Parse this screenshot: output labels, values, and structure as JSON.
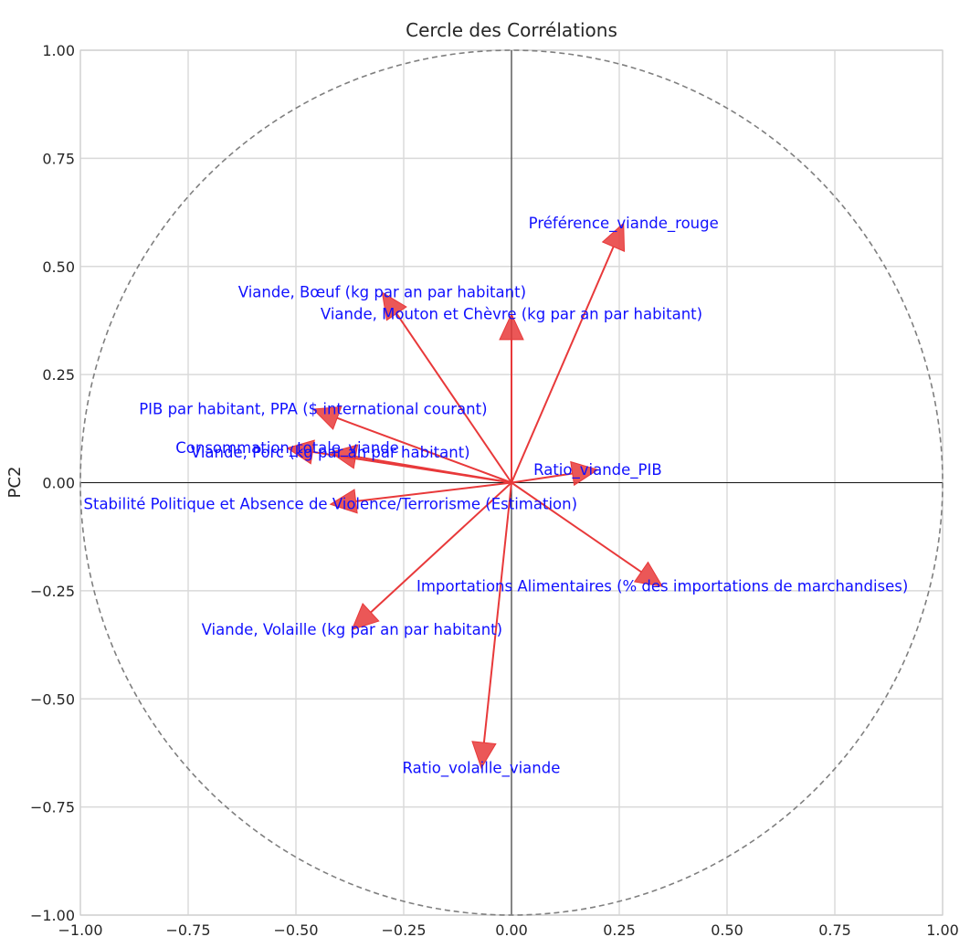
{
  "chart_data": {
    "type": "correlation_circle",
    "title": "Cercle des Corrélations",
    "xlabel": "",
    "ylabel": "PC2",
    "xlim": [
      -1.0,
      1.0
    ],
    "ylim": [
      -1.0,
      1.0
    ],
    "x_ticks": [
      "−1.00",
      "−0.75",
      "−0.50",
      "−0.25",
      "0.00",
      "0.25",
      "0.50",
      "0.75",
      "1.00"
    ],
    "y_ticks": [
      "1.00",
      "0.75",
      "0.50",
      "0.25",
      "0.00",
      "−0.25",
      "−0.50",
      "−0.75",
      "−1.00"
    ],
    "tick_values": [
      -1.0,
      -0.75,
      -0.5,
      -0.25,
      0.0,
      0.25,
      0.5,
      0.75,
      1.0
    ],
    "grid": true,
    "circle_radius": 1.0,
    "arrow_color": "#e8393a",
    "label_color": "#1010ff",
    "vectors": [
      {
        "name": "Préférence_viande_rouge",
        "x": 0.26,
        "y": 0.6
      },
      {
        "name": "Viande, Bœuf (kg par an par habitant)",
        "x": -0.3,
        "y": 0.44
      },
      {
        "name": "Viande, Mouton et Chèvre (kg par an par habitant)",
        "x": 0.0,
        "y": 0.39
      },
      {
        "name": "PIB par habitant, PPA ($ international courant)",
        "x": -0.46,
        "y": 0.17
      },
      {
        "name": "Consommation_totale_viande",
        "x": -0.52,
        "y": 0.08
      },
      {
        "name": "Viande, Porc (kg par an par habitant)",
        "x": -0.42,
        "y": 0.07
      },
      {
        "name": "Ratio_viande_PIB",
        "x": 0.2,
        "y": 0.03
      },
      {
        "name": "Stabilité Politique et Absence de Violence/Terrorisme (Estimation)",
        "x": -0.42,
        "y": -0.05
      },
      {
        "name": "Importations Alimentaires (% des importations de marchandises)",
        "x": 0.35,
        "y": -0.24
      },
      {
        "name": "Viande, Volaille (kg par an par habitant)",
        "x": -0.37,
        "y": -0.34
      },
      {
        "name": "Ratio_volaille_viande",
        "x": -0.07,
        "y": -0.66
      }
    ]
  }
}
